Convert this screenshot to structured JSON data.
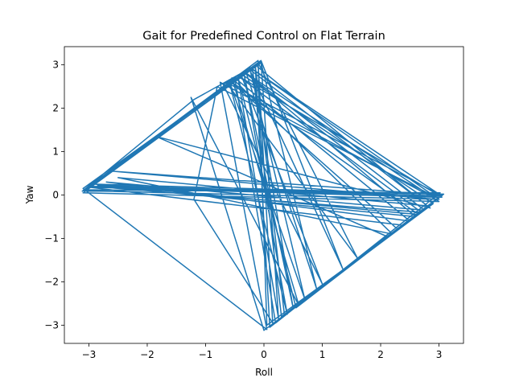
{
  "chart_data": {
    "type": "line",
    "title": "Gait for Predefined Control on Flat Terrain",
    "xlabel": "Roll",
    "ylabel": "Yaw",
    "xlim": [
      -3.42,
      3.42
    ],
    "ylim": [
      -3.42,
      3.42
    ],
    "xticks": [
      -3,
      -2,
      -1,
      0,
      1,
      2,
      3
    ],
    "yticks": [
      -3,
      -2,
      -1,
      0,
      1,
      2,
      3
    ],
    "grid": false,
    "legend": "none",
    "series": [
      {
        "color": "#1f77b4",
        "points": [
          [
            -3.12,
            0.08
          ],
          [
            -1.2,
            2.2
          ],
          [
            -0.2,
            2.95
          ],
          [
            0.3,
            -2.8
          ],
          [
            3.05,
            0.0
          ],
          [
            -2.6,
            0.55
          ],
          [
            2.95,
            -0.1
          ],
          [
            -0.75,
            2.6
          ],
          [
            0.05,
            -3.1
          ],
          [
            -3.1,
            0.15
          ],
          [
            -0.05,
            3.1
          ],
          [
            1.35,
            -1.7
          ],
          [
            -0.25,
            2.9
          ],
          [
            2.85,
            -0.3
          ],
          [
            -1.85,
            1.35
          ],
          [
            2.1,
            -0.95
          ],
          [
            0.1,
            -3.05
          ],
          [
            -0.15,
            3.0
          ],
          [
            -3.0,
            0.2
          ],
          [
            3.05,
            -0.05
          ],
          [
            -0.45,
            2.75
          ],
          [
            0.55,
            -2.6
          ],
          [
            3.08,
            0.02
          ],
          [
            -2.9,
            0.25
          ],
          [
            2.65,
            -0.45
          ],
          [
            -0.6,
            2.65
          ],
          [
            0.4,
            -2.75
          ],
          [
            -0.35,
            2.85
          ],
          [
            3.0,
            -0.15
          ],
          [
            -3.1,
            0.05
          ],
          [
            -0.05,
            3.05
          ],
          [
            0.9,
            -2.15
          ],
          [
            -0.3,
            2.8
          ],
          [
            2.75,
            -0.35
          ],
          [
            -2.7,
            0.3
          ],
          [
            2.5,
            -0.6
          ],
          [
            -0.5,
            2.7
          ],
          [
            0.2,
            -2.95
          ],
          [
            3.02,
            0.05
          ],
          [
            -3.05,
            0.12
          ],
          [
            -0.2,
            2.95
          ],
          [
            -0.7,
            2.55
          ],
          [
            1.0,
            -2.05
          ],
          [
            -0.4,
            2.8
          ],
          [
            2.9,
            -0.2
          ],
          [
            0.0,
            -3.12
          ],
          [
            -1.25,
            2.25
          ],
          [
            0.6,
            -2.55
          ],
          [
            -0.55,
            2.7
          ],
          [
            2.2,
            -0.9
          ],
          [
            -2.5,
            0.4
          ],
          [
            2.8,
            -0.25
          ],
          [
            -0.15,
            3.0
          ],
          [
            0.35,
            -2.75
          ],
          [
            2.4,
            -0.7
          ],
          [
            -3.0,
            0.18
          ],
          [
            2.95,
            -0.05
          ],
          [
            -0.8,
            2.5
          ],
          [
            -1.2,
            -0.1
          ],
          [
            0.15,
            -2.95
          ],
          [
            -0.1,
            3.05
          ],
          [
            1.6,
            -1.45
          ],
          [
            -0.65,
            2.6
          ],
          [
            3.05,
            -0.02
          ],
          [
            -2.85,
            0.22
          ],
          [
            2.6,
            -0.5
          ],
          [
            -0.35,
            2.85
          ],
          [
            0.5,
            -2.6
          ],
          [
            -0.2,
            2.9
          ],
          [
            3.0,
            -0.1
          ],
          [
            -3.1,
            0.1
          ],
          [
            -0.05,
            3.08
          ],
          [
            0.25,
            -2.85
          ],
          [
            -0.45,
            2.75
          ],
          [
            2.7,
            -0.4
          ],
          [
            -2.95,
            0.2
          ],
          [
            3.0,
            0.02
          ],
          [
            -0.25,
            2.95
          ],
          [
            0.7,
            -2.4
          ],
          [
            -0.6,
            2.65
          ],
          [
            2.3,
            -0.8
          ],
          [
            0.05,
            -3.0
          ],
          [
            -0.1,
            3.1
          ],
          [
            -3.12,
            0.08
          ]
        ]
      }
    ]
  }
}
